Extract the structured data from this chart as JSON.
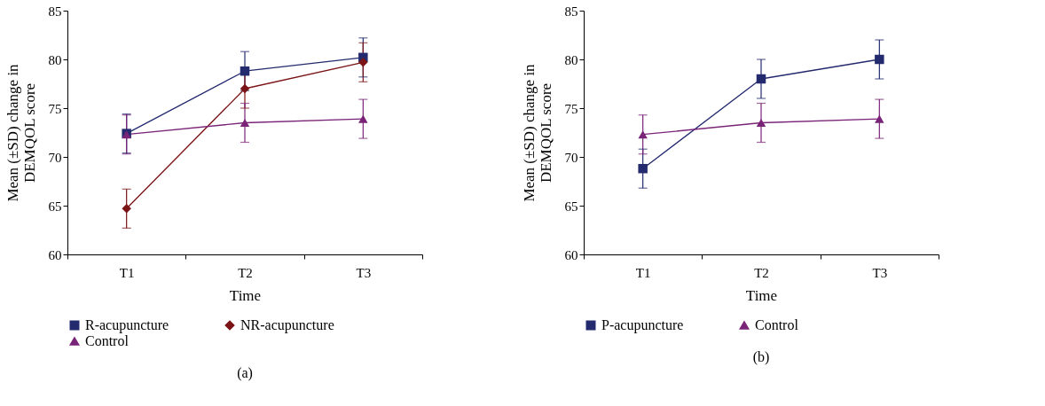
{
  "chart_data": [
    {
      "type": "line",
      "xlabel": "Time",
      "ylabel": "Mean (±SD) change in\nDEMQOL score",
      "categories": [
        "T1",
        "T2",
        "T3"
      ],
      "ylim": [
        60,
        85
      ],
      "yticks": [
        60,
        65,
        70,
        75,
        80,
        85
      ],
      "grid": false,
      "legend": "bottom",
      "annotations": [
        "(a)"
      ],
      "series": [
        {
          "name": "R-acupuncture",
          "color": "#232a6e",
          "marker": "square",
          "values": [
            72.4,
            78.8,
            80.2
          ],
          "errors": [
            2,
            2,
            2
          ]
        },
        {
          "name": "NR-acupuncture",
          "color": "#7b1416",
          "marker": "diamond",
          "values": [
            64.7,
            77.0,
            79.7
          ],
          "errors": [
            2,
            2,
            2
          ]
        },
        {
          "name": "Control",
          "color": "#7a2478",
          "marker": "triangle",
          "values": [
            72.3,
            73.5,
            73.9
          ],
          "errors": [
            2,
            2,
            2
          ]
        }
      ]
    },
    {
      "type": "line",
      "xlabel": "Time",
      "ylabel": "Mean (±SD) change in\nDEMQOL score",
      "categories": [
        "T1",
        "T2",
        "T3"
      ],
      "ylim": [
        60,
        85
      ],
      "yticks": [
        60,
        65,
        70,
        75,
        80,
        85
      ],
      "grid": false,
      "legend": "bottom",
      "annotations": [
        "(b)"
      ],
      "series": [
        {
          "name": "P-acupuncture",
          "color": "#232a6e",
          "marker": "square",
          "values": [
            68.8,
            78.0,
            80.0
          ],
          "errors": [
            2,
            2,
            2
          ]
        },
        {
          "name": "Control",
          "color": "#7a2478",
          "marker": "triangle",
          "values": [
            72.3,
            73.5,
            73.9
          ],
          "errors": [
            2,
            2,
            2
          ]
        }
      ]
    }
  ]
}
